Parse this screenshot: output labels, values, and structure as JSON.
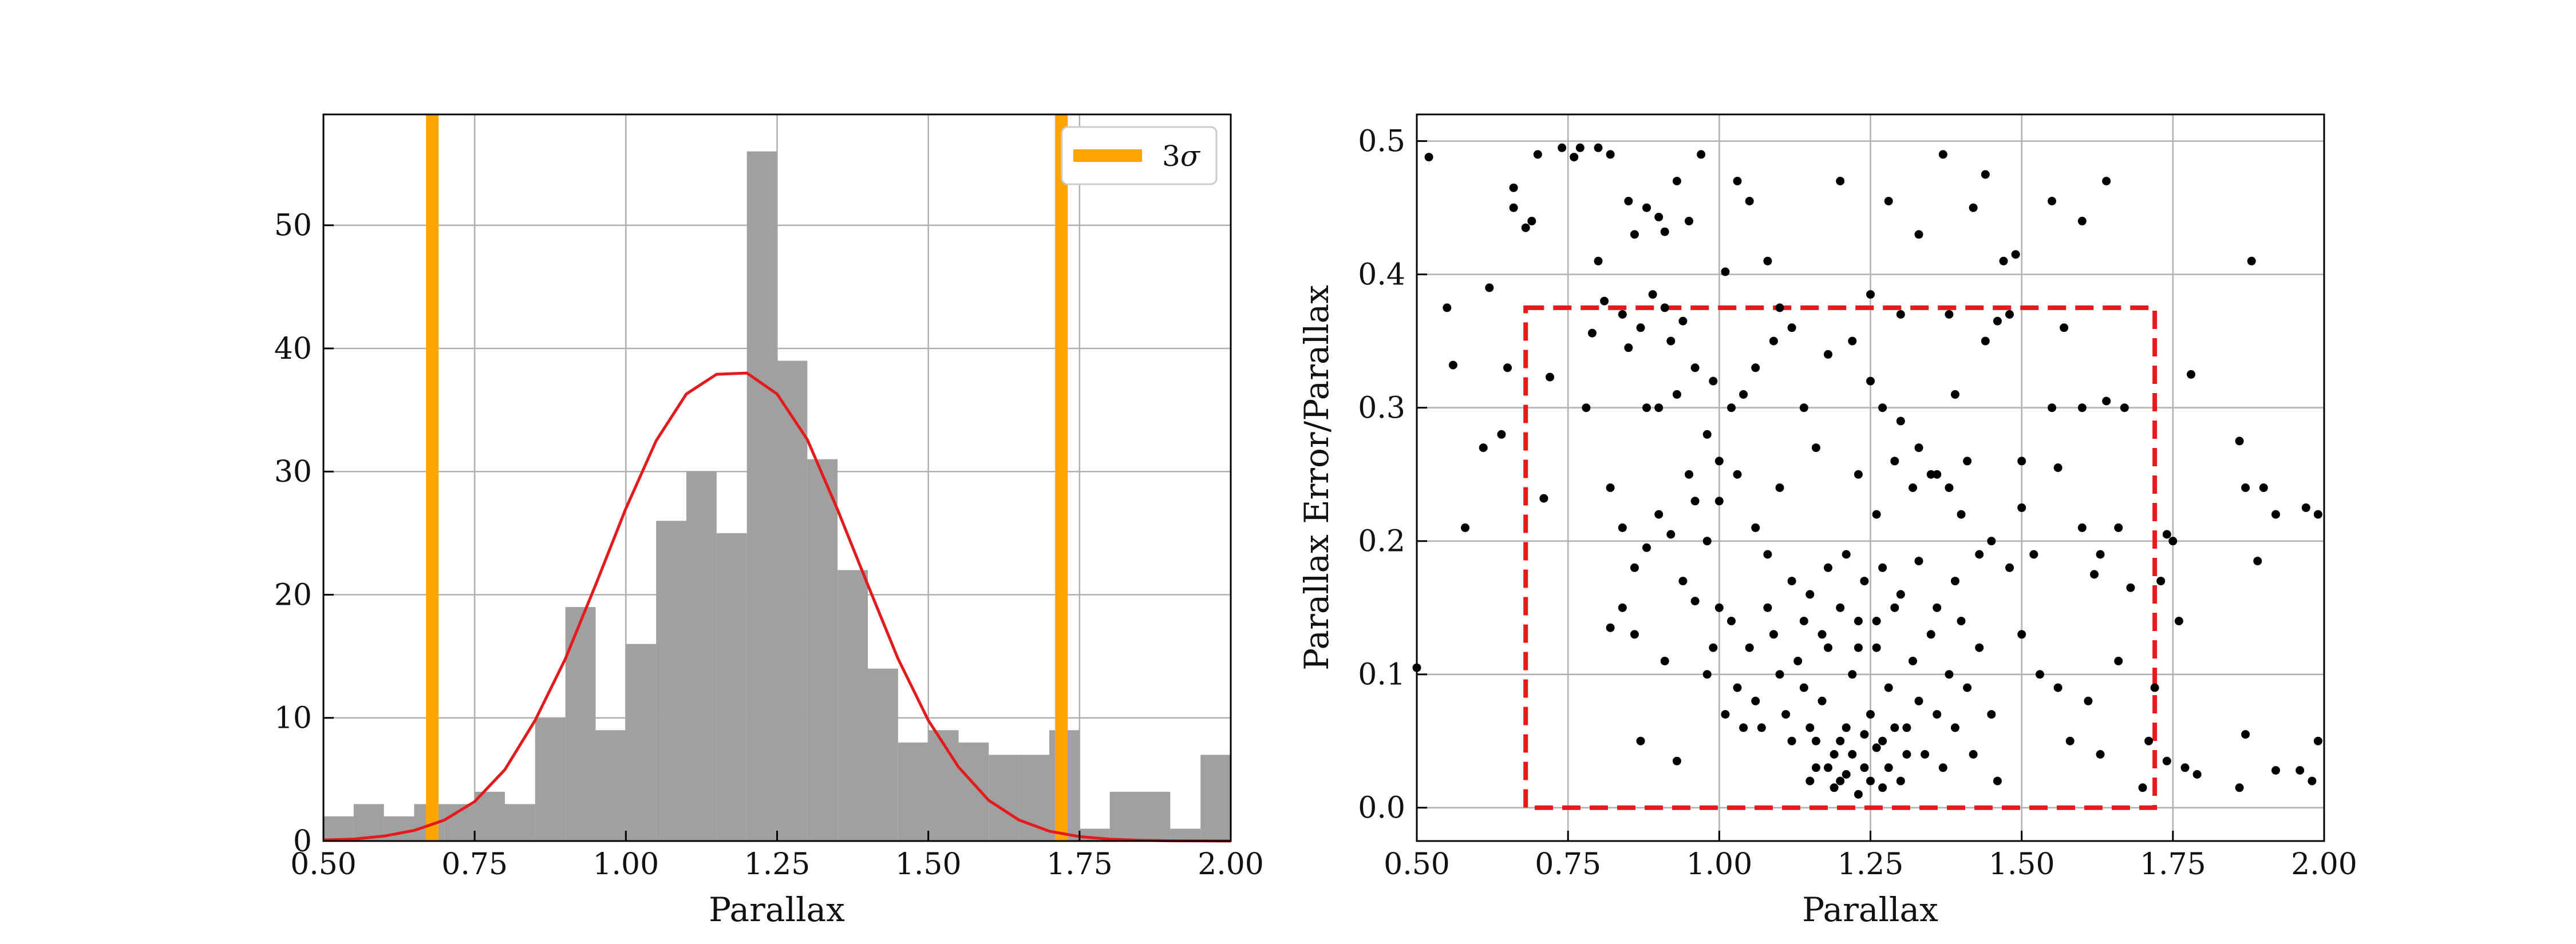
{
  "chart_data": [
    {
      "type": "bar",
      "subtype": "histogram",
      "xlabel": "Parallax",
      "ylabel": "",
      "xlim": [
        0.5,
        2.0
      ],
      "ylim": [
        0,
        59
      ],
      "xticks": [
        "0.50",
        "0.75",
        "1.00",
        "1.25",
        "1.50",
        "1.75",
        "2.00"
      ],
      "yticks": [
        "0",
        "10",
        "20",
        "30",
        "40",
        "50"
      ],
      "grid": true,
      "bins": {
        "start": 0.5,
        "width": 0.05,
        "counts": [
          2,
          3,
          2,
          3,
          3,
          4,
          3,
          10,
          19,
          9,
          16,
          26,
          30,
          25,
          56,
          39,
          31,
          22,
          14,
          8,
          9,
          8,
          7,
          7,
          9,
          1,
          4,
          4,
          1,
          7
        ],
        "color": "#a0a0a0"
      },
      "fit_curve": {
        "name": "gaussian fit",
        "color": "#e41a1c",
        "mean": 1.2,
        "sigma": 0.17,
        "peak": 38,
        "x": [
          0.5,
          0.55,
          0.6,
          0.65,
          0.7,
          0.75,
          0.8,
          0.85,
          0.9,
          0.95,
          1.0,
          1.05,
          1.1,
          1.15,
          1.2,
          1.25,
          1.3,
          1.35,
          1.4,
          1.45,
          1.5,
          1.55,
          1.6,
          1.65,
          1.7,
          1.75,
          1.8,
          1.85,
          1.9,
          1.95,
          2.0
        ],
        "y": [
          0.08,
          0.16,
          0.4,
          0.86,
          1.7,
          3.2,
          5.8,
          9.8,
          14.8,
          20.8,
          27.0,
          32.5,
          36.3,
          37.9,
          38.0,
          36.3,
          32.6,
          26.9,
          20.8,
          14.8,
          9.8,
          6.0,
          3.3,
          1.7,
          0.8,
          0.36,
          0.15,
          0.06,
          0.02,
          0.01,
          0.0
        ]
      },
      "vlines": {
        "name": "3σ",
        "color": "#ffa500",
        "x": [
          0.68,
          1.72
        ]
      },
      "legend": {
        "placement": "top-right",
        "entries": [
          {
            "label": "3",
            "symbol": "σ",
            "color": "#ffa500"
          }
        ]
      }
    },
    {
      "type": "scatter",
      "xlabel": "Parallax",
      "ylabel": "Parallax Error/Parallax",
      "xlim": [
        0.5,
        2.0
      ],
      "ylim": [
        -0.025,
        0.52
      ],
      "xticks": [
        "0.50",
        "0.75",
        "1.00",
        "1.25",
        "1.50",
        "1.75",
        "2.00"
      ],
      "yticks": [
        "0.0",
        "0.1",
        "0.2",
        "0.3",
        "0.4",
        "0.5"
      ],
      "grid": true,
      "point_color": "#000000",
      "selection_box": {
        "color": "#e41a1c",
        "style": "dashed",
        "x": [
          0.68,
          1.72
        ],
        "y": [
          0.0,
          0.375
        ]
      },
      "points": [
        [
          0.52,
          0.488
        ],
        [
          0.55,
          0.375
        ],
        [
          0.56,
          0.332
        ],
        [
          0.58,
          0.21
        ],
        [
          0.61,
          0.27
        ],
        [
          0.62,
          0.39
        ],
        [
          0.64,
          0.28
        ],
        [
          0.65,
          0.33
        ],
        [
          0.66,
          0.465
        ],
        [
          0.66,
          0.45
        ],
        [
          0.68,
          0.435
        ],
        [
          0.69,
          0.44
        ],
        [
          0.7,
          0.49
        ],
        [
          0.72,
          0.323
        ],
        [
          0.71,
          0.232
        ],
        [
          0.5,
          0.105
        ],
        [
          0.74,
          0.495
        ],
        [
          0.76,
          0.488
        ],
        [
          0.77,
          0.495
        ],
        [
          0.8,
          0.495
        ],
        [
          0.8,
          0.41
        ],
        [
          0.82,
          0.49
        ],
        [
          0.85,
          0.455
        ],
        [
          0.86,
          0.43
        ],
        [
          0.88,
          0.45
        ],
        [
          0.9,
          0.443
        ],
        [
          0.93,
          0.47
        ],
        [
          0.97,
          0.49
        ],
        [
          0.91,
          0.432
        ],
        [
          0.95,
          0.44
        ],
        [
          0.79,
          0.356
        ],
        [
          0.81,
          0.38
        ],
        [
          0.84,
          0.37
        ],
        [
          0.87,
          0.36
        ],
        [
          0.89,
          0.385
        ],
        [
          0.91,
          0.375
        ],
        [
          0.92,
          0.35
        ],
        [
          0.94,
          0.365
        ],
        [
          0.96,
          0.33
        ],
        [
          0.99,
          0.32
        ],
        [
          1.01,
          0.402
        ],
        [
          1.03,
          0.47
        ],
        [
          1.05,
          0.455
        ],
        [
          1.08,
          0.41
        ],
        [
          1.1,
          0.375
        ],
        [
          0.85,
          0.345
        ],
        [
          0.88,
          0.3
        ],
        [
          0.9,
          0.3
        ],
        [
          0.93,
          0.31
        ],
        [
          0.95,
          0.25
        ],
        [
          0.98,
          0.28
        ],
        [
          1.0,
          0.26
        ],
        [
          1.02,
          0.3
        ],
        [
          1.04,
          0.31
        ],
        [
          1.06,
          0.33
        ],
        [
          1.09,
          0.35
        ],
        [
          1.12,
          0.36
        ],
        [
          1.14,
          0.3
        ],
        [
          1.16,
          0.27
        ],
        [
          1.18,
          0.34
        ],
        [
          0.78,
          0.3
        ],
        [
          0.82,
          0.24
        ],
        [
          0.84,
          0.21
        ],
        [
          0.86,
          0.18
        ],
        [
          0.88,
          0.195
        ],
        [
          0.9,
          0.22
        ],
        [
          0.92,
          0.205
        ],
        [
          0.94,
          0.17
        ],
        [
          0.96,
          0.23
        ],
        [
          0.98,
          0.2
        ],
        [
          1.0,
          0.23
        ],
        [
          1.03,
          0.25
        ],
        [
          1.06,
          0.21
        ],
        [
          1.08,
          0.19
        ],
        [
          1.1,
          0.24
        ],
        [
          1.2,
          0.47
        ],
        [
          1.28,
          0.455
        ],
        [
          1.33,
          0.43
        ],
        [
          1.37,
          0.49
        ],
        [
          1.42,
          0.45
        ],
        [
          1.44,
          0.475
        ],
        [
          1.47,
          0.41
        ],
        [
          1.49,
          0.415
        ],
        [
          1.55,
          0.455
        ],
        [
          1.6,
          0.44
        ],
        [
          1.64,
          0.47
        ],
        [
          1.88,
          0.41
        ],
        [
          1.25,
          0.385
        ],
        [
          1.3,
          0.37
        ],
        [
          1.38,
          0.37
        ],
        [
          1.22,
          0.35
        ],
        [
          1.25,
          0.32
        ],
        [
          1.27,
          0.3
        ],
        [
          1.3,
          0.29
        ],
        [
          1.33,
          0.27
        ],
        [
          1.36,
          0.25
        ],
        [
          1.39,
          0.31
        ],
        [
          1.41,
          0.26
        ],
        [
          1.44,
          0.35
        ],
        [
          1.46,
          0.365
        ],
        [
          1.48,
          0.37
        ],
        [
          1.5,
          0.26
        ],
        [
          1.55,
          0.3
        ],
        [
          1.57,
          0.36
        ],
        [
          1.6,
          0.3
        ],
        [
          1.23,
          0.25
        ],
        [
          1.26,
          0.22
        ],
        [
          1.29,
          0.26
        ],
        [
          1.32,
          0.24
        ],
        [
          1.35,
          0.25
        ],
        [
          1.38,
          0.24
        ],
        [
          1.4,
          0.22
        ],
        [
          1.43,
          0.19
        ],
        [
          1.45,
          0.2
        ],
        [
          1.5,
          0.225
        ],
        [
          1.52,
          0.19
        ],
        [
          1.56,
          0.255
        ],
        [
          1.6,
          0.21
        ],
        [
          1.64,
          0.305
        ],
        [
          1.67,
          0.3
        ],
        [
          1.63,
          0.19
        ],
        [
          1.62,
          0.175
        ],
        [
          1.66,
          0.21
        ],
        [
          1.68,
          0.165
        ],
        [
          1.74,
          0.205
        ],
        [
          1.75,
          0.2
        ],
        [
          1.76,
          0.14
        ],
        [
          1.73,
          0.17
        ],
        [
          1.78,
          0.325
        ],
        [
          1.86,
          0.275
        ],
        [
          1.87,
          0.24
        ],
        [
          1.9,
          0.24
        ],
        [
          1.89,
          0.185
        ],
        [
          1.92,
          0.22
        ],
        [
          1.97,
          0.225
        ],
        [
          1.99,
          0.22
        ],
        [
          0.87,
          0.05
        ],
        [
          0.91,
          0.11
        ],
        [
          0.93,
          0.035
        ],
        [
          0.96,
          0.155
        ],
        [
          0.98,
          0.1
        ],
        [
          0.99,
          0.12
        ],
        [
          1.0,
          0.15
        ],
        [
          1.01,
          0.07
        ],
        [
          1.02,
          0.14
        ],
        [
          1.03,
          0.09
        ],
        [
          1.04,
          0.06
        ],
        [
          1.05,
          0.12
        ],
        [
          1.06,
          0.08
        ],
        [
          1.07,
          0.06
        ],
        [
          1.08,
          0.15
        ],
        [
          1.09,
          0.13
        ],
        [
          1.1,
          0.1
        ],
        [
          1.11,
          0.07
        ],
        [
          1.12,
          0.05
        ],
        [
          1.13,
          0.11
        ],
        [
          1.14,
          0.09
        ],
        [
          1.15,
          0.06
        ],
        [
          1.16,
          0.03
        ],
        [
          1.17,
          0.08
        ],
        [
          1.18,
          0.12
        ],
        [
          1.19,
          0.04
        ],
        [
          1.2,
          0.02
        ],
        [
          1.21,
          0.06
        ],
        [
          1.22,
          0.1
        ],
        [
          1.23,
          0.14
        ],
        [
          1.24,
          0.03
        ],
        [
          1.25,
          0.07
        ],
        [
          1.26,
          0.12
        ],
        [
          1.27,
          0.05
        ],
        [
          1.28,
          0.09
        ],
        [
          1.29,
          0.15
        ],
        [
          1.3,
          0.02
        ],
        [
          1.31,
          0.06
        ],
        [
          1.32,
          0.11
        ],
        [
          1.33,
          0.08
        ],
        [
          1.34,
          0.04
        ],
        [
          1.35,
          0.13
        ],
        [
          1.36,
          0.07
        ],
        [
          1.37,
          0.03
        ],
        [
          1.38,
          0.1
        ],
        [
          1.39,
          0.06
        ],
        [
          1.4,
          0.14
        ],
        [
          1.41,
          0.09
        ],
        [
          1.42,
          0.04
        ],
        [
          1.43,
          0.12
        ],
        [
          1.45,
          0.07
        ],
        [
          1.46,
          0.02
        ],
        [
          1.48,
          0.18
        ],
        [
          1.5,
          0.13
        ],
        [
          1.53,
          0.1
        ],
        [
          1.56,
          0.09
        ],
        [
          1.58,
          0.05
        ],
        [
          1.61,
          0.08
        ],
        [
          1.63,
          0.04
        ],
        [
          1.66,
          0.11
        ],
        [
          1.12,
          0.17
        ],
        [
          1.15,
          0.16
        ],
        [
          1.18,
          0.18
        ],
        [
          1.21,
          0.19
        ],
        [
          1.24,
          0.17
        ],
        [
          1.27,
          0.18
        ],
        [
          1.3,
          0.16
        ],
        [
          1.33,
          0.185
        ],
        [
          1.36,
          0.15
        ],
        [
          1.39,
          0.17
        ],
        [
          1.14,
          0.14
        ],
        [
          1.17,
          0.13
        ],
        [
          1.2,
          0.15
        ],
        [
          1.23,
          0.12
        ],
        [
          1.26,
          0.14
        ],
        [
          1.18,
          0.03
        ],
        [
          1.19,
          0.015
        ],
        [
          1.2,
          0.05
        ],
        [
          1.21,
          0.025
        ],
        [
          1.22,
          0.04
        ],
        [
          1.23,
          0.01
        ],
        [
          1.24,
          0.055
        ],
        [
          1.25,
          0.02
        ],
        [
          1.26,
          0.045
        ],
        [
          1.27,
          0.015
        ],
        [
          1.15,
          0.02
        ],
        [
          1.16,
          0.05
        ],
        [
          1.28,
          0.03
        ],
        [
          1.29,
          0.06
        ],
        [
          1.31,
          0.04
        ],
        [
          1.7,
          0.015
        ],
        [
          1.71,
          0.05
        ],
        [
          1.72,
          0.09
        ],
        [
          1.74,
          0.035
        ],
        [
          1.77,
          0.03
        ],
        [
          1.79,
          0.025
        ],
        [
          1.86,
          0.015
        ],
        [
          1.87,
          0.055
        ],
        [
          1.92,
          0.028
        ],
        [
          1.96,
          0.028
        ],
        [
          1.98,
          0.02
        ],
        [
          1.99,
          0.05
        ],
        [
          0.82,
          0.135
        ],
        [
          0.84,
          0.15
        ],
        [
          0.86,
          0.13
        ]
      ]
    }
  ]
}
